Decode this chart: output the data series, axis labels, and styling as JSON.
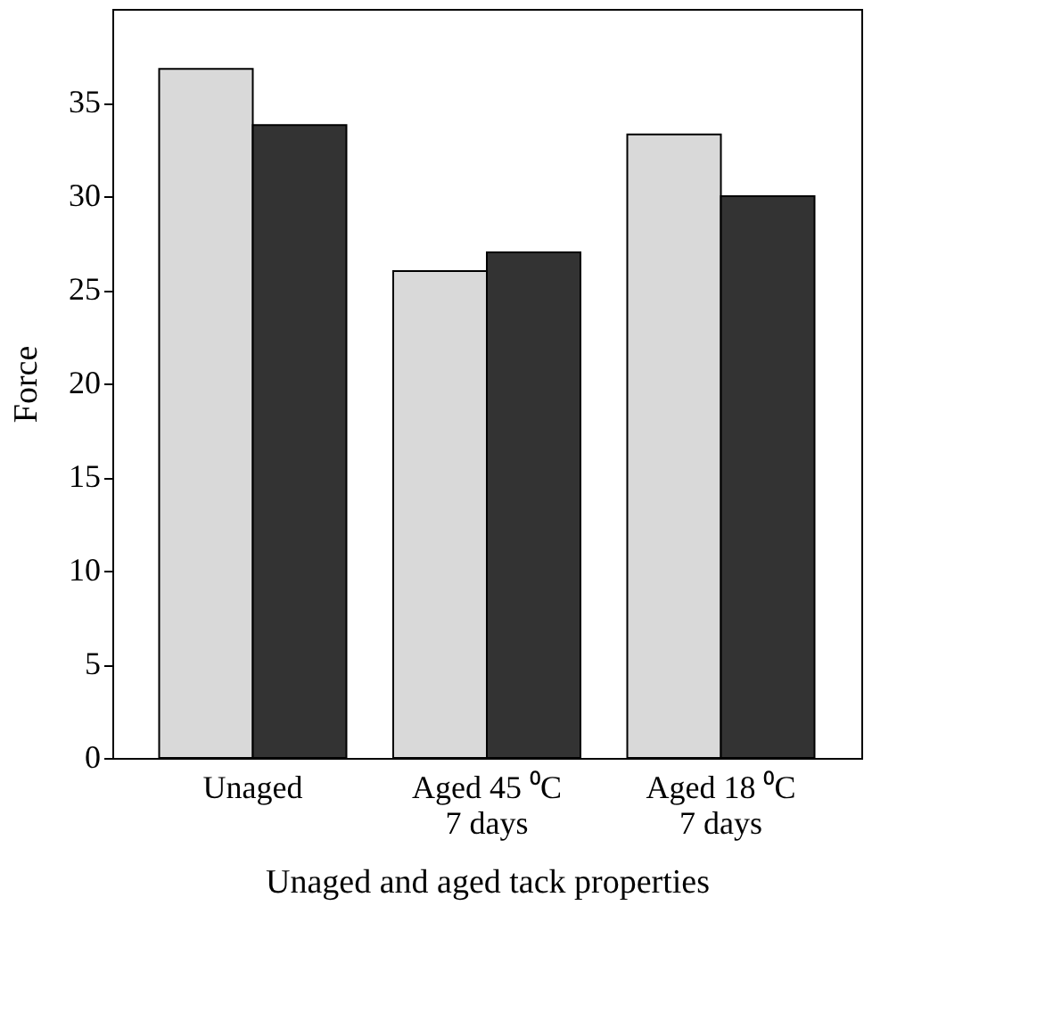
{
  "chart_data": {
    "type": "bar",
    "xlabel": "Unaged and aged tack properties",
    "ylabel": "Force",
    "categories": [
      "Unaged",
      "Aged 45 ⁰C\n7 days",
      "Aged 18 ⁰C\n7 days"
    ],
    "series": [
      {
        "color": "#d9d9d9",
        "values": [
          36.8,
          26,
          33.3
        ]
      },
      {
        "color": "#333333",
        "values": [
          33.8,
          27,
          30
        ]
      }
    ],
    "ylim": [
      0,
      40
    ],
    "yticks": [
      0,
      5,
      10,
      15,
      20,
      25,
      30,
      35
    ],
    "grid": false
  }
}
